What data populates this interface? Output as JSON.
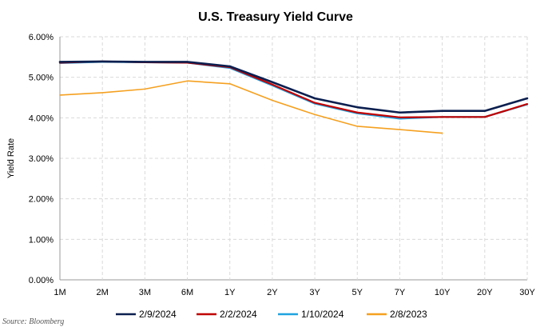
{
  "chart_data": {
    "type": "line",
    "title": "U.S. Treasury Yield Curve",
    "xlabel": "",
    "ylabel": "Yield Rate",
    "categories": [
      "1M",
      "2M",
      "3M",
      "6M",
      "1Y",
      "2Y",
      "3Y",
      "5Y",
      "7Y",
      "10Y",
      "20Y",
      "30Y"
    ],
    "ylim": [
      0,
      6
    ],
    "yticks": [
      "0.00%",
      "1.00%",
      "2.00%",
      "3.00%",
      "4.00%",
      "5.00%",
      "6.00%"
    ],
    "grid": true,
    "legend_position": "bottom",
    "series": [
      {
        "name": "2/9/2024",
        "color": "#0b1f4f",
        "values": [
          5.38,
          5.39,
          5.38,
          5.38,
          5.27,
          4.88,
          4.48,
          4.26,
          4.13,
          4.17,
          4.17,
          4.48
        ]
      },
      {
        "name": "2/2/2024",
        "color": "#c00000",
        "values": [
          5.36,
          5.39,
          5.37,
          5.36,
          5.25,
          4.82,
          4.37,
          4.13,
          4.01,
          4.02,
          4.02,
          4.34
        ]
      },
      {
        "name": "1/10/2024",
        "color": "#1fa2e0",
        "values": [
          5.35,
          5.38,
          5.37,
          5.36,
          5.23,
          4.8,
          4.35,
          4.11,
          3.98,
          4.02,
          4.02,
          4.33
        ]
      },
      {
        "name": "2/8/2023",
        "color": "#f5a01f",
        "values": [
          4.56,
          4.62,
          4.71,
          4.91,
          4.84,
          4.43,
          4.08,
          3.79,
          3.71,
          3.62,
          null,
          null
        ]
      }
    ]
  },
  "source_text": "Source: Bloomberg"
}
